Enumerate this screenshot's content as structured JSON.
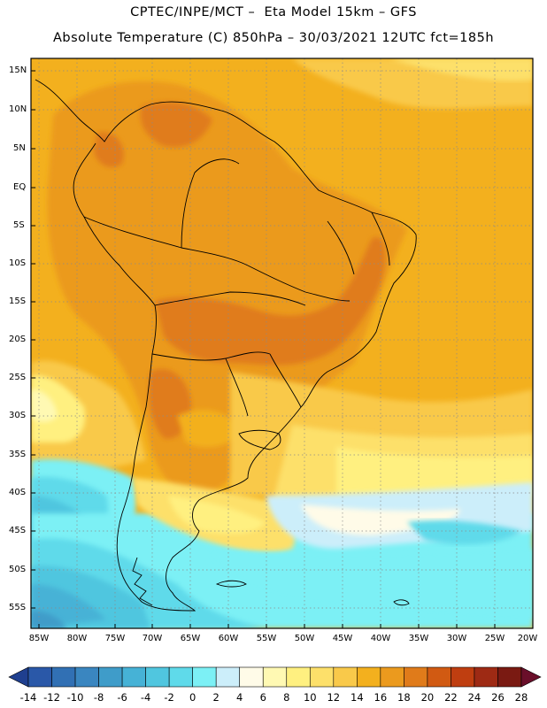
{
  "header": {
    "line1": "CPTEC/INPE/MCT –  Eta Model 15km – GFS",
    "line2": "Absolute Temperature (C) 850hPa – 30/03/2021 12UTC fct=185h"
  },
  "map": {
    "region": "South America",
    "variable": "Absolute Temperature (C) 850hPa",
    "lat_range": [
      -58,
      17
    ],
    "lon_range": [
      -86,
      -20
    ],
    "lat_labels": [
      "15N",
      "10N",
      "5N",
      "EQ",
      "5S",
      "10S",
      "15S",
      "20S",
      "25S",
      "30S",
      "35S",
      "40S",
      "45S",
      "50S",
      "55S"
    ],
    "lon_labels": [
      "85W",
      "80W",
      "75W",
      "70W",
      "65W",
      "60W",
      "55W",
      "50W",
      "45W",
      "40W",
      "35W",
      "30W",
      "25W",
      "20W"
    ]
  },
  "colorbar": {
    "labels": [
      "-14",
      "-12",
      "-10",
      "-8",
      "-6",
      "-4",
      "-2",
      "0",
      "2",
      "4",
      "6",
      "8",
      "10",
      "12",
      "14",
      "16",
      "18",
      "20",
      "22",
      "24",
      "26",
      "28"
    ],
    "colors": [
      "#1f3f8f",
      "#2a58a8",
      "#3170b4",
      "#3a86c0",
      "#3f9cc9",
      "#46b2d6",
      "#50c6df",
      "#5fdaea",
      "#7cf0f5",
      "#cceefa",
      "#fffbe8",
      "#fff9b3",
      "#fff080",
      "#fde06a",
      "#f9c94a",
      "#f3b01e",
      "#eb9a1e",
      "#e07b1a",
      "#d15a12",
      "#bf3e10",
      "#9e2a14",
      "#7a1a12",
      "#6a0f2a"
    ]
  }
}
